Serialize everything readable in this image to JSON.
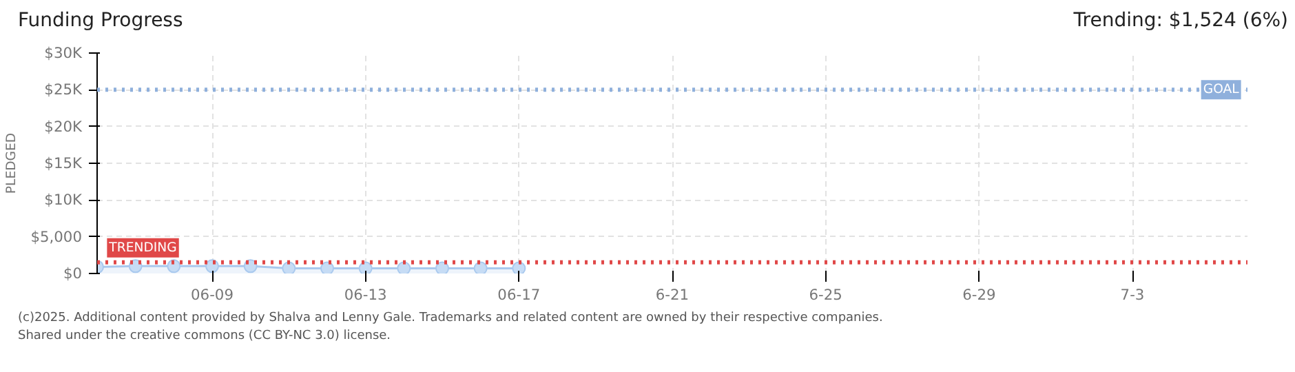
{
  "chart_data": {
    "type": "area",
    "title": "Funding Progress",
    "ylabel": "PLEDGED",
    "annotations": [
      "Trending: $1,524 (6%)",
      "(c)2025. Additional content provided by Shalva and Lenny Gale. Trademarks and related content are owned by their respective companies.",
      "Shared under the creative commons (CC BY-NC 3.0) license."
    ],
    "x": [
      "2025-06-06",
      "2025-06-07",
      "2025-06-08",
      "2025-06-09",
      "2025-06-10",
      "2025-06-11",
      "2025-06-12",
      "2025-06-13",
      "2025-06-14",
      "2025-06-15",
      "2025-06-16",
      "2025-06-17"
    ],
    "series": [
      {
        "color": "#a9c9ee",
        "values": [
          900,
          1000,
          1000,
          1000,
          1000,
          700,
          700,
          700,
          700,
          700,
          700,
          700
        ]
      }
    ],
    "marker": "circle",
    "xlim": [
      "2025-06-06",
      "2025-07-06"
    ],
    "xticks": [
      {
        "value": "2025-06-09",
        "label": "06-09"
      },
      {
        "value": "2025-06-13",
        "label": "06-13"
      },
      {
        "value": "2025-06-17",
        "label": "06-17"
      },
      {
        "value": "2025-06-21",
        "label": "6-21"
      },
      {
        "value": "2025-06-25",
        "label": "6-25"
      },
      {
        "value": "2025-06-29",
        "label": "6-29"
      },
      {
        "value": "2025-07-03",
        "label": "7-3"
      }
    ],
    "ylim": [
      0,
      30000
    ],
    "yticks": [
      {
        "value": 0,
        "label": "$0"
      },
      {
        "value": 5000,
        "label": "$5,000"
      },
      {
        "value": 10000,
        "label": "$10K"
      },
      {
        "value": 15000,
        "label": "$15K"
      },
      {
        "value": 20000,
        "label": "$20K"
      },
      {
        "value": 25000,
        "label": "$25K"
      },
      {
        "value": 30000,
        "label": "$30K"
      }
    ],
    "ref_lines": [
      {
        "axis": "y",
        "value": 25000,
        "label": "GOAL",
        "color": "#8fb0dc",
        "line_style": "dotted"
      },
      {
        "axis": "y",
        "value": 1524,
        "label": "TRENDING",
        "color": "#e04848",
        "line_style": "dotted"
      }
    ],
    "grid": true
  }
}
